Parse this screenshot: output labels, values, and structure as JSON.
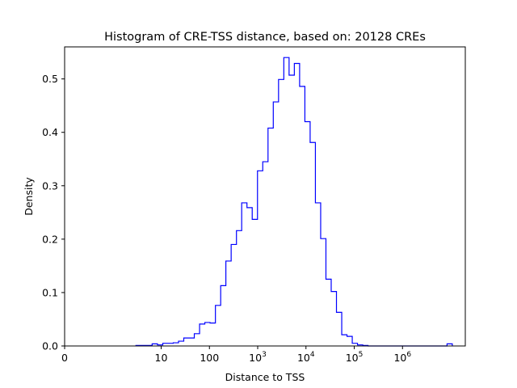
{
  "chart_data": {
    "type": "histogram",
    "title": "Histogram of CRE-TSS distance, based on: 20128 CREs",
    "xlabel": "Distance to TSS",
    "ylabel": "Density",
    "x_scale": "symlog",
    "xlim": [
      0,
      20000000
    ],
    "ylim": [
      0,
      0.56
    ],
    "grid": false,
    "legend": "none",
    "colors": {
      "histogram_line": "#0000ff",
      "axes": "#000000",
      "background": "#ffffff"
    },
    "x_ticks": [
      {
        "value": 0,
        "base": "0",
        "exp": ""
      },
      {
        "value": 10,
        "base": "10",
        "exp": ""
      },
      {
        "value": 100,
        "base": "100",
        "exp": ""
      },
      {
        "value": 1000,
        "base": "10",
        "exp": "3"
      },
      {
        "value": 10000,
        "base": "10",
        "exp": "4"
      },
      {
        "value": 100000,
        "base": "10",
        "exp": "5"
      },
      {
        "value": 1000000,
        "base": "10",
        "exp": "6"
      }
    ],
    "y_ticks": [
      "0.0",
      "0.1",
      "0.2",
      "0.3",
      "0.4",
      "0.5"
    ],
    "y_tick_values": [
      0,
      0.1,
      0.2,
      0.3,
      0.4,
      0.5
    ],
    "bin_edges": [
      3,
      4,
      5.1,
      6.5,
      8.4,
      10.8,
      13.9,
      17.8,
      22.9,
      29.4,
      37.8,
      48.6,
      62.5,
      80.3,
      103,
      133,
      171,
      219,
      282,
      363,
      466,
      599,
      770,
      990,
      1273,
      1636,
      2103,
      2704,
      3476,
      4468,
      5744,
      7384,
      9492,
      12202,
      15685,
      20164,
      25921,
      33321,
      42834,
      55064,
      70785,
      90995,
      116975,
      150373,
      193306,
      248497,
      319448,
      410656,
      527906,
      678633,
      872396,
      1121483,
      1441690,
      1853322,
      2382483,
      3062734,
      3937215,
      5061382,
      6506520,
      8364275,
      10752467
    ],
    "densities": [
      0.001,
      0.001,
      0.001,
      0.004,
      0.002,
      0.005,
      0.005,
      0.006,
      0.009,
      0.015,
      0.015,
      0.023,
      0.041,
      0.044,
      0.043,
      0.076,
      0.113,
      0.159,
      0.19,
      0.216,
      0.268,
      0.259,
      0.237,
      0.328,
      0.345,
      0.408,
      0.457,
      0.499,
      0.54,
      0.507,
      0.529,
      0.486,
      0.42,
      0.381,
      0.268,
      0.201,
      0.125,
      0.102,
      0.063,
      0.021,
      0.018,
      0.005,
      0.002,
      0.001,
      0.0,
      0.0,
      0.0,
      0.0,
      0.0,
      0.0,
      0.0,
      0.0,
      0.0,
      0.0,
      0.0,
      0.0,
      0.0,
      0.0,
      0.0,
      0.004
    ]
  }
}
